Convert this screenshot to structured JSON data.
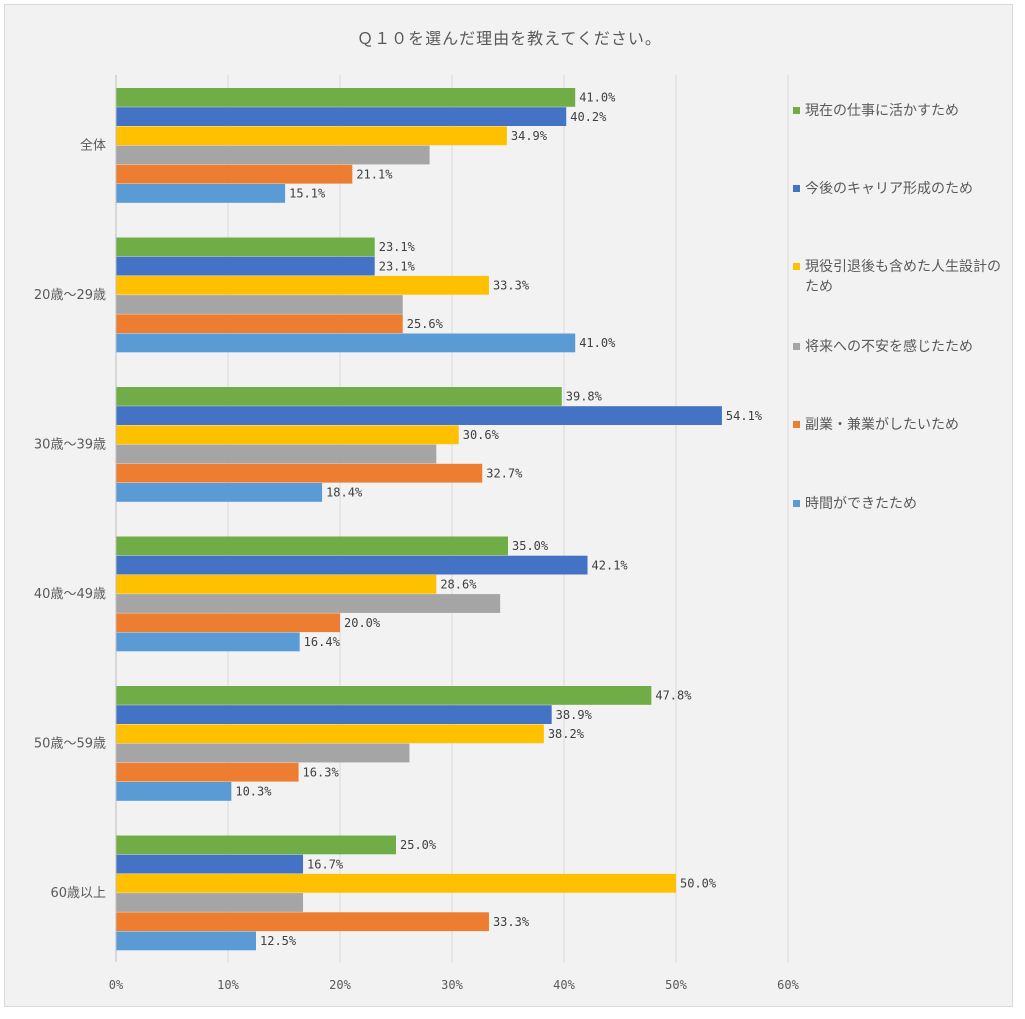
{
  "chart_data": {
    "type": "bar",
    "orientation": "horizontal",
    "title": "Ｑ１０を選んだ理由を教えてください。",
    "categories": [
      "全体",
      "20歳～29歳",
      "30歳～39歳",
      "40歳～49歳",
      "50歳～59歳",
      "60歳以上"
    ],
    "xlim": [
      0,
      60
    ],
    "xticks": [
      "0%",
      "10%",
      "20%",
      "30%",
      "40%",
      "50%",
      "60%"
    ],
    "xtick_values": [
      0,
      10,
      20,
      30,
      40,
      50,
      60
    ],
    "gridlines": true,
    "legend_position": "right",
    "series": [
      {
        "name": "現在の仕事に活かすため",
        "color": "#70ad47",
        "values": [
          41.0,
          23.1,
          39.8,
          35.0,
          47.8,
          25.0
        ],
        "labels": [
          "41.0%",
          "23.1%",
          "39.8%",
          "35.0%",
          "47.8%",
          "25.0%"
        ]
      },
      {
        "name": "今後のキャリア形成のため",
        "color": "#4472c4",
        "values": [
          40.2,
          23.1,
          54.1,
          42.1,
          38.9,
          16.7
        ],
        "labels": [
          "40.2%",
          "23.1%",
          "54.1%",
          "42.1%",
          "38.9%",
          "16.7%"
        ]
      },
      {
        "name": "現役引退後も含めた人生設計のため",
        "color": "#ffc000",
        "values": [
          34.9,
          33.3,
          30.6,
          28.6,
          38.2,
          50.0
        ],
        "labels": [
          "34.9%",
          "33.3%",
          "30.6%",
          "28.6%",
          "38.2%",
          "50.0%"
        ]
      },
      {
        "name": "将来への不安を感じたため",
        "color": "#a5a5a5",
        "values": [
          28.0,
          25.6,
          28.6,
          34.3,
          26.2,
          16.7
        ],
        "labels": [
          "",
          "",
          "",
          "",
          "",
          ""
        ]
      },
      {
        "name": "副業・兼業がしたいため",
        "color": "#ed7d31",
        "values": [
          21.1,
          25.6,
          32.7,
          20.0,
          16.3,
          33.3
        ],
        "labels": [
          "21.1%",
          "25.6%",
          "32.7%",
          "20.0%",
          "16.3%",
          "33.3%"
        ]
      },
      {
        "name": "時間ができたため",
        "color": "#5b9bd5",
        "values": [
          15.1,
          41.0,
          18.4,
          16.4,
          10.3,
          12.5
        ],
        "labels": [
          "15.1%",
          "41.0%",
          "18.4%",
          "16.4%",
          "10.3%",
          "12.5%"
        ]
      }
    ]
  }
}
